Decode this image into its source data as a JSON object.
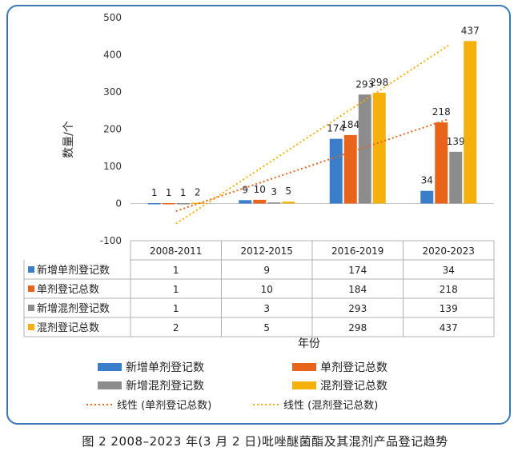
{
  "chart_data": {
    "type": "bar",
    "title": "",
    "xlabel": "年份",
    "ylabel": "数量/个",
    "ylim": [
      -100,
      500
    ],
    "yticks": [
      -100,
      0,
      100,
      200,
      300,
      400,
      500
    ],
    "grid": false,
    "categories": [
      "2008-2011",
      "2012-2015",
      "2016-2019",
      "2020-2023"
    ],
    "series": [
      {
        "name": "新增单剂登记数",
        "color": "#3a7dc9",
        "values": [
          1,
          9,
          174,
          34
        ]
      },
      {
        "name": "单剂登记总数",
        "color": "#e8641b",
        "values": [
          1,
          10,
          184,
          218
        ]
      },
      {
        "name": "新增混剂登记数",
        "color": "#8c8c8c",
        "values": [
          1,
          3,
          293,
          139
        ]
      },
      {
        "name": "混剂登记总数",
        "color": "#f5b00b",
        "values": [
          2,
          5,
          298,
          437
        ]
      }
    ],
    "trendlines": [
      {
        "name": "线性 (单剂登记总数)",
        "color": "#e8641b",
        "of": "单剂登记总数"
      },
      {
        "name": "线性 (混剂登记总数)",
        "color": "#f5b00b",
        "of": "混剂登记总数"
      }
    ],
    "legend_position": "bottom",
    "data_table": true
  },
  "caption": "图 2 2008–2023 年(3 月 2 日)吡唑醚菌酯及其混剂产品登记趋势"
}
